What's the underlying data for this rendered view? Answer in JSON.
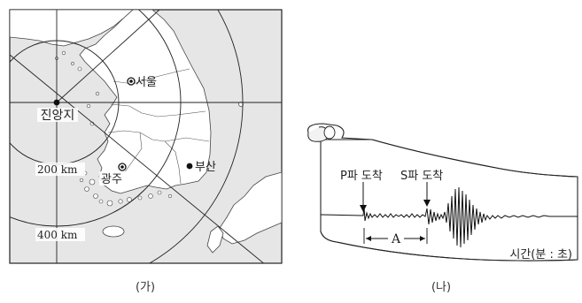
{
  "map_panel": {
    "caption": "(가)",
    "epicenter_label": "진앙지",
    "cities": [
      {
        "name": "서울"
      },
      {
        "name": "광주"
      },
      {
        "name": "부산"
      }
    ],
    "distance_labels": [
      "200 km",
      "400 km"
    ]
  },
  "seismogram_panel": {
    "caption": "(나)",
    "p_arrival_label": "P파 도착",
    "s_arrival_label": "S파 도착",
    "interval_label": "A",
    "time_axis_label": "시간(분 : 초)"
  },
  "colors": {
    "sea": "#e6e6e6",
    "land": "#ffffff",
    "ink": "#222222"
  }
}
